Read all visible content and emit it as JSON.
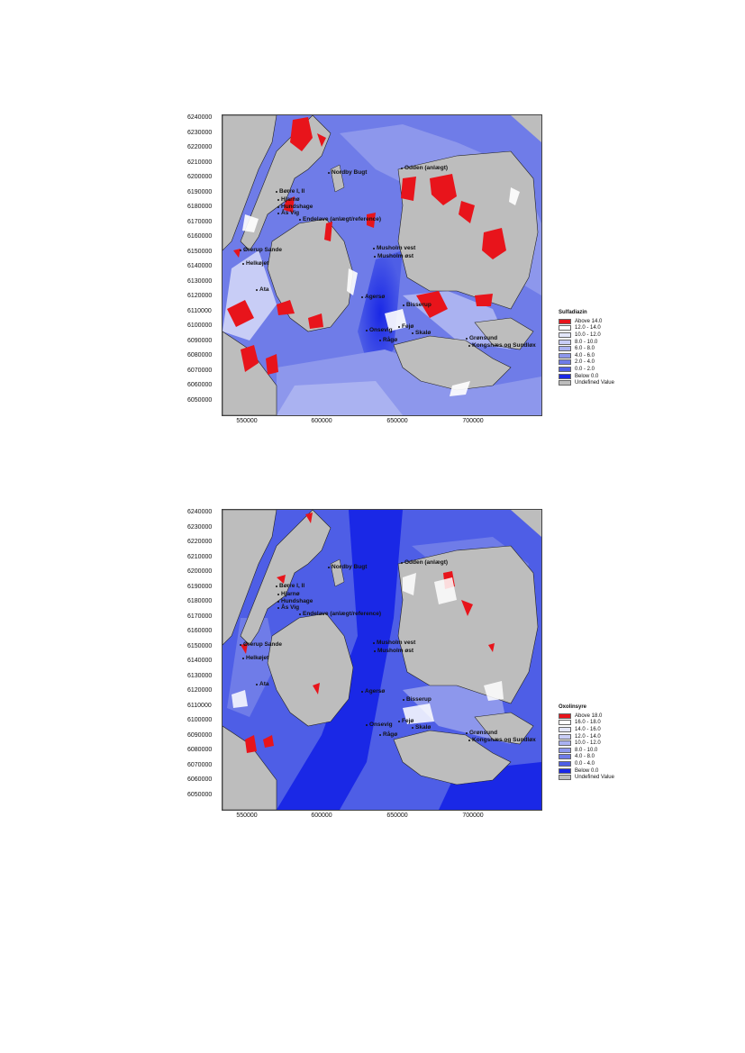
{
  "maps": [
    {
      "y_ticks": [
        "6240000",
        "6230000",
        "6220000",
        "6210000",
        "6200000",
        "6190000",
        "6180000",
        "6170000",
        "6160000",
        "6150000",
        "6140000",
        "6130000",
        "6120000",
        "6110000",
        "6100000",
        "6090000",
        "6080000",
        "6070000",
        "6060000",
        "6050000"
      ],
      "x_ticks": [
        "550000",
        "600000",
        "650000",
        "700000"
      ],
      "legend": {
        "title": "Sulfadiazin",
        "entries": [
          {
            "label": "Above 14.0",
            "color": "#e8141b"
          },
          {
            "label": "12.0 - 14.0",
            "color": "#ffffff"
          },
          {
            "label": "10.0 - 12.0",
            "color": "#e4e7fa"
          },
          {
            "label": "8.0 - 10.0",
            "color": "#c8cdf6"
          },
          {
            "label": "6.0 - 8.0",
            "color": "#aab2f1"
          },
          {
            "label": "4.0 - 6.0",
            "color": "#8d97ec"
          },
          {
            "label": "2.0 - 4.0",
            "color": "#6f7ce8"
          },
          {
            "label": "0.0 - 2.0",
            "color": "#4e5ee6"
          },
          {
            "label": "Below 0.0",
            "color": "#1a28e6"
          },
          {
            "label": "Undefined Value",
            "color": "#bdbdbd"
          }
        ]
      },
      "sites": [
        "Nordby Bugt",
        "Odden (anlægt)",
        "Børre I, II",
        "Hjarnø",
        "Hundshage",
        "Ås Vig",
        "Endelave (anlægt/reference)",
        "Ørerup Sande",
        "Musholm vest",
        "Musholm øst",
        "Helkøjet",
        "Ata",
        "Agersø",
        "Bisserup",
        "Fejø",
        "Onsevig",
        "Skalø",
        "Rågø",
        "Grønsund",
        "Kongsnæs og Sundløx"
      ]
    },
    {
      "y_ticks": [
        "6240000",
        "6230000",
        "6220000",
        "6210000",
        "6200000",
        "6190000",
        "6180000",
        "6170000",
        "6160000",
        "6150000",
        "6140000",
        "6130000",
        "6120000",
        "6110000",
        "6100000",
        "6090000",
        "6080000",
        "6070000",
        "6060000",
        "6050000"
      ],
      "x_ticks": [
        "550000",
        "600000",
        "650000",
        "700000"
      ],
      "legend": {
        "title": "Oxolinsyre",
        "entries": [
          {
            "label": "Above 18.0",
            "color": "#e8141b"
          },
          {
            "label": "16.0 - 18.0",
            "color": "#ffffff"
          },
          {
            "label": "14.0 - 16.0",
            "color": "#e4e7fa"
          },
          {
            "label": "12.0 - 14.0",
            "color": "#c8cdf6"
          },
          {
            "label": "10.0 - 12.0",
            "color": "#aab2f1"
          },
          {
            "label": "8.0 - 10.0",
            "color": "#8d97ec"
          },
          {
            "label": "4.0 - 8.0",
            "color": "#6f7ce8"
          },
          {
            "label": "0.0 - 4.0",
            "color": "#4e5ee6"
          },
          {
            "label": "Below 0.0",
            "color": "#1a28e6"
          },
          {
            "label": "Undefined Value",
            "color": "#bdbdbd"
          }
        ]
      },
      "sites": [
        "Nordby Bugt",
        "Odden (anlægt)",
        "Børre I, II",
        "Hjarnø",
        "Hundshage",
        "Ås Vig",
        "Endelave (anlægt/reference)",
        "Ørerup Sande",
        "Musholm vest",
        "Musholm øst",
        "Helkøjet",
        "Ata",
        "Agersø",
        "Bisserup",
        "Fejø",
        "Onsevig",
        "Skalø",
        "Rågø",
        "Grønsund",
        "Kongsnæs og Sundløx"
      ]
    }
  ]
}
